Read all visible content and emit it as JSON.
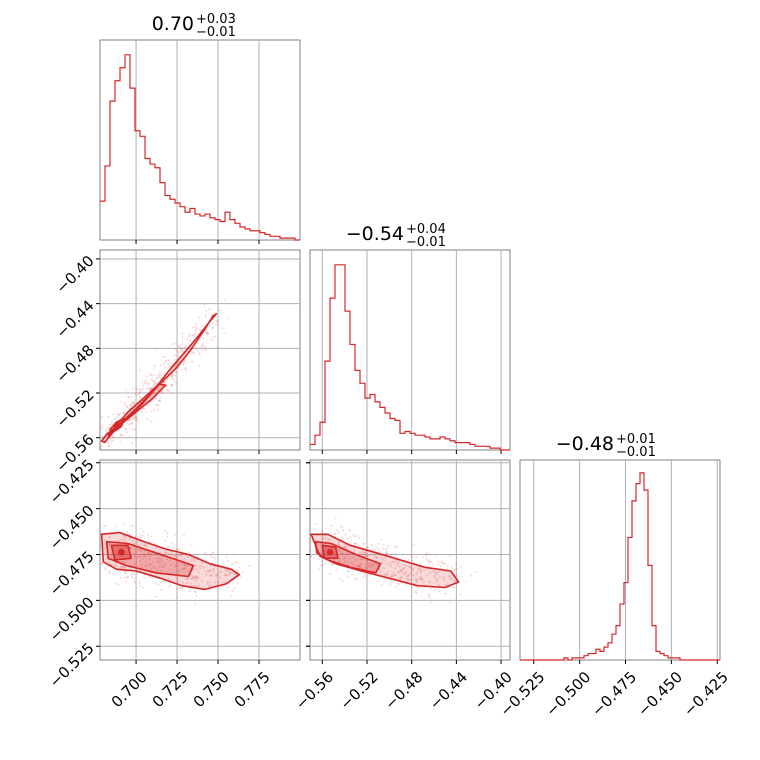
{
  "chart_data": {
    "type": "corner",
    "color": "#d62728",
    "parameters": [
      {
        "title": {
          "median": "0.70",
          "plus": "+0.03",
          "minus": "−0.01"
        },
        "range": [
          0.678,
          0.8
        ],
        "ticks": [
          0.7,
          0.725,
          0.75,
          0.775
        ],
        "tick_labels": [
          "0.700",
          "0.725",
          "0.750",
          "0.775"
        ]
      },
      {
        "title": {
          "median": "−0.54",
          "plus": "+0.04",
          "minus": "−0.01"
        },
        "range": [
          -0.571,
          -0.392
        ],
        "ticks": [
          -0.56,
          -0.52,
          -0.48,
          -0.44,
          -0.4
        ],
        "tick_labels": [
          "−0.56",
          "−0.52",
          "−0.48",
          "−0.44",
          "−0.40"
        ]
      },
      {
        "title": {
          "median": "−0.48",
          "plus": "+0.01",
          "minus": "−0.01"
        },
        "range": [
          -0.5325,
          -0.4235
        ],
        "ticks": [
          -0.525,
          -0.5,
          -0.475,
          -0.45,
          -0.425
        ],
        "tick_labels": [
          "−0.525",
          "−0.500",
          "−0.475",
          "−0.450",
          "−0.425"
        ]
      }
    ],
    "histograms": [
      {
        "param": 0,
        "bin_range": [
          0.678,
          0.8
        ],
        "counts": [
          21,
          40,
          75,
          86,
          93,
          100,
          82,
          59,
          56,
          44,
          41,
          39,
          31,
          24,
          22,
          20,
          18,
          15,
          17,
          14,
          13,
          14,
          12,
          11,
          10,
          15,
          11,
          9,
          7,
          6,
          5,
          5,
          4,
          3,
          2,
          2,
          1,
          1,
          1,
          0
        ],
        "ymax": 108
      },
      {
        "param": 1,
        "bin_range": [
          -0.571,
          -0.392
        ],
        "counts": [
          3,
          8,
          15,
          48,
          82,
          100,
          100,
          75,
          57,
          43,
          36,
          28,
          30,
          26,
          23,
          20,
          17,
          16,
          9,
          10,
          9,
          8,
          8,
          7,
          6,
          6,
          7,
          6,
          5,
          4,
          4,
          4,
          3,
          2,
          2,
          2,
          1,
          1,
          0,
          0
        ],
        "ymax": 108
      },
      {
        "param": 2,
        "bin_range": [
          -0.5325,
          -0.4235
        ],
        "counts": [
          0,
          0,
          0,
          0,
          0,
          0,
          0,
          0,
          0,
          0,
          0,
          1,
          0,
          1,
          1,
          1,
          2,
          3,
          3,
          5,
          4,
          6,
          8,
          12,
          16,
          26,
          36,
          57,
          74,
          82,
          87,
          79,
          44,
          16,
          4,
          3,
          2,
          1,
          1,
          1,
          0,
          0,
          0,
          0,
          0,
          0,
          0,
          0,
          0,
          0
        ],
        "ymax": 93
      }
    ],
    "pairs": [
      {
        "x_param": 0,
        "y_param": 1,
        "correlation": "strong-positive",
        "outer_contour": [
          [
            0.679,
            -0.563
          ],
          [
            0.682,
            -0.557
          ],
          [
            0.688,
            -0.55
          ],
          [
            0.696,
            -0.541
          ],
          [
            0.703,
            -0.531
          ],
          [
            0.713,
            -0.514
          ],
          [
            0.725,
            -0.497
          ],
          [
            0.733,
            -0.482
          ],
          [
            0.741,
            -0.465
          ],
          [
            0.747,
            -0.451
          ],
          [
            0.749,
            -0.449
          ],
          [
            0.745,
            -0.456
          ],
          [
            0.738,
            -0.469
          ],
          [
            0.73,
            -0.483
          ],
          [
            0.72,
            -0.5
          ],
          [
            0.71,
            -0.519
          ],
          [
            0.7,
            -0.534
          ],
          [
            0.692,
            -0.545
          ],
          [
            0.686,
            -0.555
          ],
          [
            0.681,
            -0.564
          ]
        ],
        "mid_contour": [
          [
            0.683,
            -0.558
          ],
          [
            0.69,
            -0.549
          ],
          [
            0.7,
            -0.537
          ],
          [
            0.71,
            -0.525
          ],
          [
            0.718,
            -0.513
          ],
          [
            0.714,
            -0.512
          ],
          [
            0.705,
            -0.524
          ],
          [
            0.695,
            -0.537
          ],
          [
            0.688,
            -0.549
          ],
          [
            0.684,
            -0.556
          ]
        ],
        "inner_contour": [
          [
            0.684,
            -0.553
          ],
          [
            0.688,
            -0.546
          ],
          [
            0.693,
            -0.543
          ],
          [
            0.691,
            -0.55
          ],
          [
            0.686,
            -0.555
          ]
        ]
      },
      {
        "x_param": 0,
        "y_param": 2,
        "correlation": "weak-negative",
        "outer_contour": [
          [
            0.679,
            -0.464
          ],
          [
            0.69,
            -0.463
          ],
          [
            0.705,
            -0.468
          ],
          [
            0.718,
            -0.472
          ],
          [
            0.732,
            -0.475
          ],
          [
            0.745,
            -0.48
          ],
          [
            0.758,
            -0.483
          ],
          [
            0.763,
            -0.486
          ],
          [
            0.755,
            -0.491
          ],
          [
            0.742,
            -0.494
          ],
          [
            0.728,
            -0.492
          ],
          [
            0.715,
            -0.488
          ],
          [
            0.7,
            -0.484
          ],
          [
            0.688,
            -0.483
          ],
          [
            0.68,
            -0.479
          ]
        ],
        "mid_contour": [
          [
            0.682,
            -0.468
          ],
          [
            0.695,
            -0.469
          ],
          [
            0.715,
            -0.475
          ],
          [
            0.735,
            -0.481
          ],
          [
            0.732,
            -0.487
          ],
          [
            0.712,
            -0.485
          ],
          [
            0.694,
            -0.481
          ],
          [
            0.683,
            -0.477
          ]
        ],
        "inner_contour": [
          [
            0.685,
            -0.47
          ],
          [
            0.695,
            -0.47
          ],
          [
            0.697,
            -0.477
          ],
          [
            0.687,
            -0.478
          ]
        ]
      },
      {
        "x_param": 1,
        "y_param": 2,
        "correlation": "weak-negative",
        "outer_contour": [
          [
            -0.57,
            -0.464
          ],
          [
            -0.555,
            -0.464
          ],
          [
            -0.535,
            -0.47
          ],
          [
            -0.512,
            -0.474
          ],
          [
            -0.49,
            -0.478
          ],
          [
            -0.468,
            -0.482
          ],
          [
            -0.445,
            -0.484
          ],
          [
            -0.438,
            -0.49
          ],
          [
            -0.45,
            -0.493
          ],
          [
            -0.475,
            -0.492
          ],
          [
            -0.5,
            -0.488
          ],
          [
            -0.525,
            -0.484
          ],
          [
            -0.548,
            -0.48
          ],
          [
            -0.562,
            -0.476
          ]
        ],
        "mid_contour": [
          [
            -0.566,
            -0.468
          ],
          [
            -0.552,
            -0.469
          ],
          [
            -0.53,
            -0.475
          ],
          [
            -0.508,
            -0.48
          ],
          [
            -0.512,
            -0.485
          ],
          [
            -0.535,
            -0.482
          ],
          [
            -0.555,
            -0.478
          ],
          [
            -0.565,
            -0.474
          ]
        ],
        "inner_contour": [
          [
            -0.56,
            -0.47
          ],
          [
            -0.548,
            -0.471
          ],
          [
            -0.546,
            -0.477
          ],
          [
            -0.558,
            -0.477
          ]
        ]
      }
    ]
  }
}
